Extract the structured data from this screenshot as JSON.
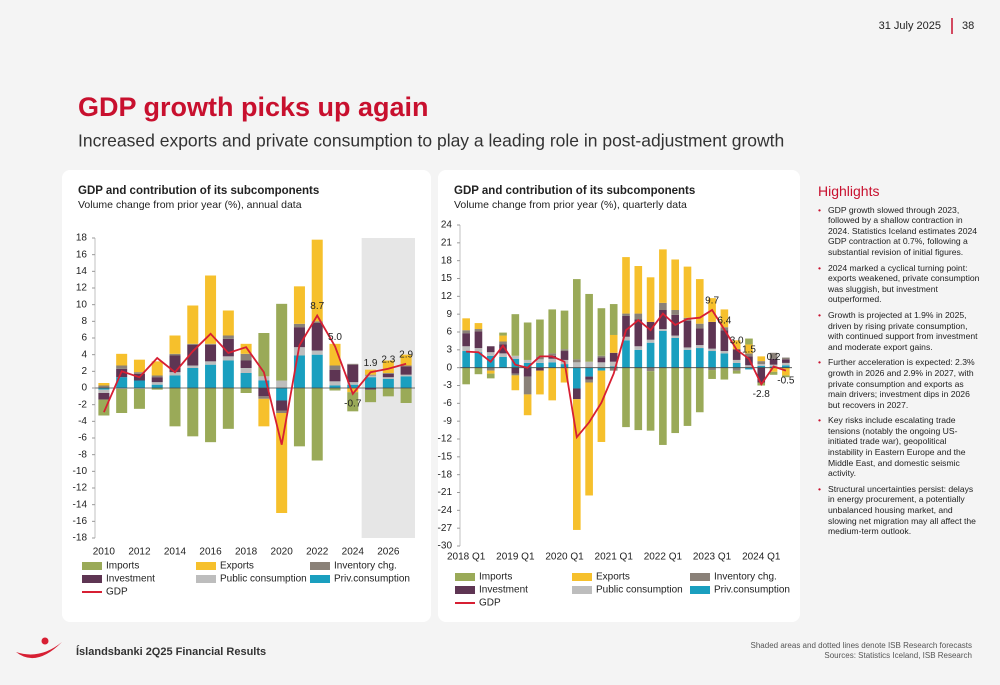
{
  "header": {
    "date": "31 July 2025",
    "page": "38"
  },
  "title": "GDP growth picks up again",
  "subtitle": "Increased exports and private consumption to play a leading role in post-adjustment growth",
  "chart_data": [
    {
      "type": "bar",
      "stacked": true,
      "title": "GDP and contribution of its subcomponents",
      "subtitle": "Volume change from prior year (%), annual data",
      "categories": [
        "2010",
        null,
        "2012",
        null,
        "2014",
        null,
        "2016",
        null,
        "2018",
        null,
        "2020",
        null,
        "2022",
        null,
        "2024",
        null,
        "2026",
        null
      ],
      "shaded_from": 15,
      "shade_color": "#e6e6e6",
      "ylim": [
        -18,
        18
      ],
      "yticks": [
        -18,
        -16,
        -14,
        -12,
        -10,
        -8,
        -6,
        -4,
        -2,
        0,
        2,
        4,
        6,
        8,
        10,
        12,
        14,
        16,
        18
      ],
      "series": [
        {
          "name": "Imports",
          "color": "#9aaa58",
          "values": [
            -1.9,
            -2.9,
            -2.4,
            -0.2,
            -4.6,
            -5.8,
            -6.5,
            -4.9,
            -0.6,
            5.2,
            9.2,
            -7.0,
            -8.7,
            -0.3,
            -2.3,
            -1.5,
            -1.0,
            -1.8
          ]
        },
        {
          "name": "Exports",
          "color": "#f6c02c",
          "values": [
            0.3,
            1.4,
            1.5,
            1.7,
            2.2,
            4.6,
            8.2,
            3.0,
            1.2,
            -3.3,
            -12.0,
            4.5,
            9.8,
            2.6,
            -0.5,
            0.6,
            1.5,
            1.3
          ]
        },
        {
          "name": "Inventory chg.",
          "color": "#8a8178",
          "values": [
            0.3,
            0.4,
            0.2,
            0.2,
            0.2,
            0.1,
            0.1,
            0.4,
            0.8,
            -0.3,
            -0.3,
            0.4,
            0.2,
            0.5,
            0.1,
            0.1,
            0.1,
            0.1
          ]
        },
        {
          "name": "Investment",
          "color": "#5e3553",
          "values": [
            -0.8,
            1.0,
            0.8,
            0.6,
            2.0,
            2.5,
            2.0,
            2.1,
            0.9,
            -1.0,
            -1.2,
            2.4,
            3.3,
            1.4,
            2.1,
            -0.2,
            0.4,
            1.0
          ]
        },
        {
          "name": "Public consumption",
          "color": "#bdbdbd",
          "values": [
            -0.4,
            -0.1,
            -0.1,
            0.3,
            0.4,
            0.3,
            0.4,
            0.5,
            0.6,
            0.5,
            0.9,
            1.0,
            0.5,
            0.5,
            0.3,
            0.2,
            0.2,
            0.2
          ]
        },
        {
          "name": "Priv.consumption",
          "color": "#1a9fbf",
          "values": [
            -0.2,
            1.3,
            0.9,
            0.4,
            1.5,
            2.4,
            2.8,
            3.3,
            1.8,
            0.9,
            -1.5,
            3.9,
            4.0,
            0.3,
            0.4,
            1.3,
            1.1,
            1.4
          ]
        },
        {
          "name": "GDP",
          "type": "line",
          "color": "#d71f33",
          "values": [
            -2.9,
            2.0,
            1.3,
            3.6,
            1.9,
            4.4,
            6.5,
            4.2,
            4.9,
            1.9,
            -6.8,
            5.1,
            8.7,
            5.0,
            -0.7,
            1.9,
            2.3,
            2.9
          ],
          "value_labels": [
            null,
            null,
            null,
            null,
            null,
            null,
            null,
            null,
            null,
            null,
            null,
            null,
            "8.7",
            "5.0",
            "-0.7",
            "1.9",
            "2.3",
            "2.9"
          ]
        }
      ]
    },
    {
      "type": "bar",
      "stacked": true,
      "title": "GDP and contribution of its subcomponents",
      "subtitle": "Volume change from prior year (%), quarterly data",
      "categories": [
        "2018 Q1",
        null,
        null,
        null,
        "2019 Q1",
        null,
        null,
        null,
        "2020 Q1",
        null,
        null,
        null,
        "2021 Q1",
        null,
        null,
        null,
        "2022 Q1",
        null,
        null,
        null,
        "2023 Q1",
        null,
        null,
        null,
        "2024 Q1",
        null,
        null
      ],
      "ylim": [
        -30,
        24
      ],
      "yticks": [
        -30,
        -27,
        -24,
        -21,
        -18,
        -15,
        -12,
        -9,
        -6,
        -3,
        0,
        3,
        6,
        9,
        12,
        15,
        18,
        21,
        24
      ],
      "series": [
        {
          "name": "Imports",
          "color": "#9aaa58",
          "values": [
            -2.8,
            -1.1,
            -0.8,
            0.5,
            7.0,
            6.3,
            6.2,
            7.4,
            6.5,
            13.5,
            11.4,
            8.0,
            5.2,
            -10.0,
            -10.5,
            -10.0,
            -13.0,
            -11.0,
            -9.8,
            -7.5,
            -1.5,
            -2.0,
            -0.5,
            1.0,
            -0.5,
            -0.5,
            -0.3
          ]
        },
        {
          "name": "Exports",
          "color": "#f6c02c",
          "values": [
            2.0,
            1.0,
            -0.5,
            1.0,
            -2.5,
            -3.5,
            -4.0,
            -5.5,
            -2.5,
            -22.0,
            -19.0,
            -12.0,
            3.0,
            9.5,
            8.0,
            7.5,
            9.0,
            8.5,
            8.6,
            7.5,
            4.0,
            3.0,
            1.5,
            1.5,
            0.8,
            -0.7,
            -1.3
          ]
        },
        {
          "name": "Inventory chg.",
          "color": "#8a8178",
          "values": [
            0.5,
            0.4,
            -0.5,
            0.5,
            -0.3,
            -3.0,
            0.5,
            0.4,
            0.3,
            0.5,
            -0.5,
            0.3,
            -0.5,
            0.4,
            1.0,
            -0.6,
            1.2,
            0.8,
            0.5,
            0.8,
            -0.4,
            0.5,
            -0.5,
            0.5,
            0.5,
            1.0,
            0.3
          ]
        },
        {
          "name": "Investment",
          "color": "#5e3553",
          "values": [
            2.2,
            2.8,
            1.0,
            1.5,
            -1.0,
            -1.5,
            -0.5,
            0.5,
            1.5,
            -1.8,
            -0.5,
            0.8,
            1.5,
            3.5,
            4.5,
            3.0,
            3.2,
            3.5,
            4.5,
            2.8,
            4.5,
            3.5,
            1.8,
            1.5,
            -2.5,
            1.0,
            0.6
          ]
        },
        {
          "name": "Public consumption",
          "color": "#bdbdbd",
          "values": [
            0.8,
            0.7,
            0.6,
            0.6,
            0.5,
            0.5,
            0.6,
            0.6,
            0.7,
            0.9,
            1.0,
            0.9,
            0.8,
            0.6,
            0.6,
            0.5,
            0.3,
            0.4,
            0.4,
            0.5,
            0.4,
            0.4,
            0.5,
            0.4,
            0.3,
            0.3,
            0.4
          ]
        },
        {
          "name": "Priv.consumption",
          "color": "#1a9fbf",
          "values": [
            2.8,
            2.6,
            2.0,
            1.8,
            1.5,
            0.8,
            0.8,
            0.9,
            0.6,
            -3.5,
            -1.5,
            -0.5,
            0.2,
            4.6,
            3.0,
            4.2,
            6.2,
            5.0,
            3.0,
            3.3,
            2.8,
            2.4,
            0.8,
            -0.3,
            0.3,
            0.2,
            0.4
          ]
        },
        {
          "name": "GDP",
          "type": "line",
          "color": "#d71f33",
          "values": [
            2.7,
            2.6,
            1.0,
            3.7,
            0.5,
            0.0,
            1.9,
            1.9,
            1.0,
            -11.7,
            -9.2,
            -5.9,
            -1.0,
            6.3,
            8.0,
            6.3,
            9.1,
            7.2,
            8.2,
            8.4,
            9.7,
            6.4,
            3.0,
            1.5,
            -2.8,
            0.2,
            -0.5
          ],
          "value_labels": [
            null,
            null,
            null,
            null,
            null,
            null,
            null,
            null,
            null,
            null,
            null,
            null,
            null,
            null,
            null,
            null,
            null,
            null,
            null,
            null,
            "9.7",
            "6.4",
            "3.0",
            "1.5",
            "-2.8",
            "0.2",
            "-0.5"
          ]
        }
      ]
    }
  ],
  "highlights": {
    "title": "Highlights",
    "items": [
      "GDP growth slowed through 2023, followed by a shallow contraction in 2024. Statistics Iceland estimates 2024 GDP contraction at 0.7%, following a substantial revision of initial figures.",
      "2024 marked a cyclical turning point: exports weakened, private consumption was sluggish, but investment outperformed.",
      "Growth is projected at 1.9% in 2025, driven by rising private consumption, with continued support from investment and moderate export gains.",
      "Further acceleration is expected: 2.3% growth in 2026 and 2.9% in 2027, with private consumption and exports as main drivers; investment dips in 2026 but recovers in 2027.",
      "Key risks include escalating trade tensions (notably the ongoing US-initiated trade war), geopolitical instability in Eastern Europe and the Middle East, and domestic seismic activity.",
      "Structural uncertainties persist: delays in energy procurement, a potentially unbalanced housing market, and slowing net migration may all affect the medium-term outlook."
    ]
  },
  "footer": {
    "brand": "Íslandsbanki 2Q25 Financial Results",
    "note": "Shaded areas and dotted lines denote ISB Research forecasts",
    "sources": "Sources: Statistics Iceland, ISB Research"
  }
}
